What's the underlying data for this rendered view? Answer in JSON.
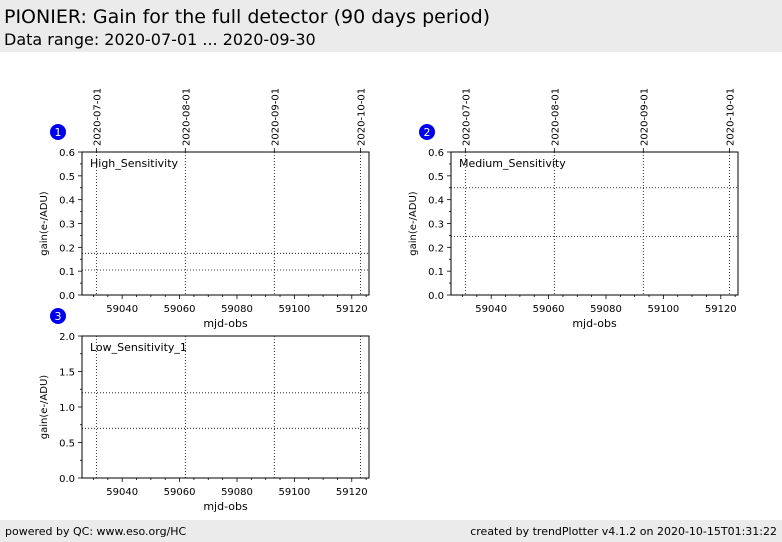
{
  "header": {
    "title": "PIONIER: Gain for the full detector (90 days period)",
    "subtitle": "Data range: 2020-07-01 ... 2020-09-30"
  },
  "footer": {
    "left": "powered by QC: www.eso.org/HC",
    "right": "created by trendPlotter v4.1.2 on 2020-10-15T01:31:22"
  },
  "colors": {
    "marker": "#0000ee",
    "band": "#ebebeb",
    "axis": "#000000"
  },
  "chart_data": [
    {
      "type": "scatter",
      "badge": "1",
      "label": "High_Sensitivity",
      "xlabel": "mjd-obs",
      "ylabel": "gain(e-/ADU)",
      "xlim": [
        59026,
        59126
      ],
      "ylim": [
        0,
        0.6
      ],
      "xticks": [
        59040,
        59060,
        59080,
        59100,
        59120
      ],
      "yticks": [
        0.0,
        0.1,
        0.2,
        0.3,
        0.4,
        0.5,
        0.6
      ],
      "ytick_labels": [
        "0.0",
        "0.1",
        "0.2",
        "0.3",
        "0.4",
        "0.5",
        "0.6"
      ],
      "date_ticks": [
        {
          "mjd": 59031,
          "label": "2020-07-01"
        },
        {
          "mjd": 59062,
          "label": "2020-08-01"
        },
        {
          "mjd": 59093,
          "label": "2020-09-01"
        },
        {
          "mjd": 59123,
          "label": "2020-10-01"
        }
      ],
      "reference_lines": [
        0.105,
        0.175
      ],
      "points": []
    },
    {
      "type": "scatter",
      "badge": "2",
      "label": "Medium_Sensitivity",
      "xlabel": "mjd-obs",
      "ylabel": "gain(e-/ADU)",
      "xlim": [
        59026,
        59126
      ],
      "ylim": [
        0,
        0.6
      ],
      "xticks": [
        59040,
        59060,
        59080,
        59100,
        59120
      ],
      "yticks": [
        0.0,
        0.1,
        0.2,
        0.3,
        0.4,
        0.5,
        0.6
      ],
      "ytick_labels": [
        "0.0",
        "0.1",
        "0.2",
        "0.3",
        "0.4",
        "0.5",
        "0.6"
      ],
      "date_ticks": [
        {
          "mjd": 59031,
          "label": "2020-07-01"
        },
        {
          "mjd": 59062,
          "label": "2020-08-01"
        },
        {
          "mjd": 59093,
          "label": "2020-09-01"
        },
        {
          "mjd": 59123,
          "label": "2020-10-01"
        }
      ],
      "reference_lines": [
        0.245,
        0.45
      ],
      "points": []
    },
    {
      "type": "scatter",
      "badge": "3",
      "label": "Low_Sensitivity_1",
      "xlabel": "mjd-obs",
      "ylabel": "gain(e-/ADU)",
      "xlim": [
        59026,
        59126
      ],
      "ylim": [
        0,
        2.0
      ],
      "xticks": [
        59040,
        59060,
        59080,
        59100,
        59120
      ],
      "yticks": [
        0.0,
        0.5,
        1.0,
        1.5,
        2.0
      ],
      "ytick_labels": [
        "0.0",
        "0.5",
        "1.0",
        "1.5",
        "2.0"
      ],
      "date_ticks": [
        {
          "mjd": 59031,
          "label": "2020-07-01"
        },
        {
          "mjd": 59062,
          "label": "2020-08-01"
        },
        {
          "mjd": 59093,
          "label": "2020-09-01"
        },
        {
          "mjd": 59123,
          "label": "2020-10-01"
        }
      ],
      "reference_lines": [
        0.7,
        1.2
      ],
      "points": []
    }
  ]
}
